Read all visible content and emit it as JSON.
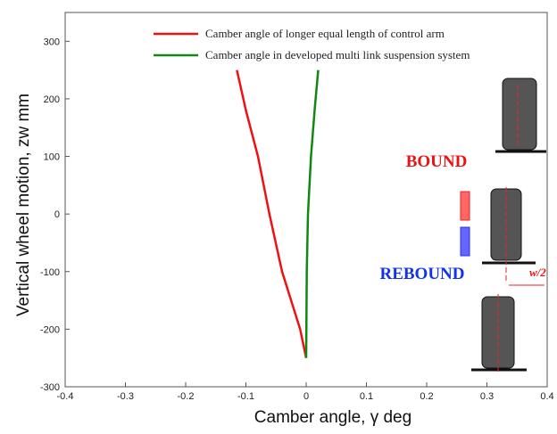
{
  "chart_data": {
    "type": "line",
    "x_label": "Camber angle, γ deg",
    "y_label": "Vertical wheel motion, zw mm",
    "xlim": [
      -0.4,
      0.4
    ],
    "ylim": [
      -300,
      350
    ],
    "xticks": [
      -0.4,
      -0.3,
      -0.2,
      -0.1,
      0,
      0.1,
      0.2,
      0.3,
      0.4
    ],
    "yticks": [
      -300,
      -200,
      -100,
      0,
      100,
      200,
      300
    ],
    "series": [
      {
        "name": "Camber angle of longer equal length of control arm",
        "color": "#ee1111",
        "x": [
          -0.115,
          -0.1,
          -0.08,
          -0.061,
          -0.04,
          -0.01,
          0
        ],
        "values": [
          250,
          180,
          100,
          0,
          -100,
          -200,
          -250
        ]
      },
      {
        "name": "Camber angle  in developed multi link suspension system",
        "color": "#118811",
        "x": [
          0,
          0.001,
          0.003,
          0.008,
          0.014,
          0.02
        ],
        "values": [
          -250,
          -100,
          0,
          100,
          180,
          250
        ]
      }
    ],
    "annotations": [
      {
        "text": "BOUND",
        "color": "#ee1111"
      },
      {
        "text": "REBOUND",
        "color": "#1133ee"
      },
      {
        "text": "w/2",
        "color": "#ee1111"
      }
    ]
  }
}
